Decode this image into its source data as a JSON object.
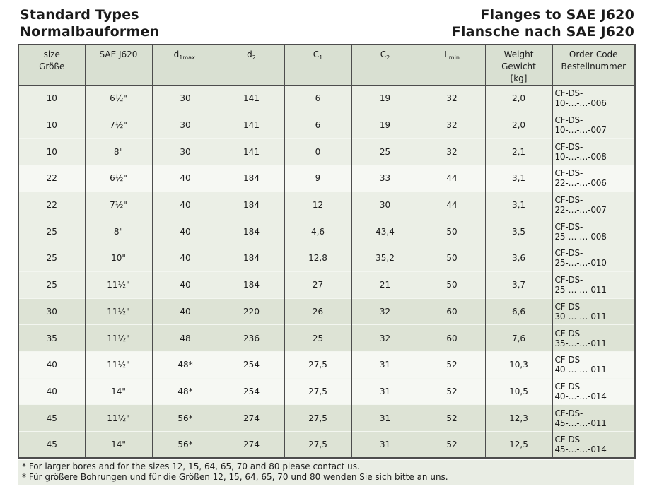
{
  "header": {
    "title_left": [
      "Standard Types",
      "Normalbauformen"
    ],
    "title_right": [
      "Flanges to SAE J620",
      "Flansche nach SAE J620"
    ]
  },
  "table": {
    "columns": [
      {
        "key": "size",
        "lines": [
          {
            "text": "size"
          },
          {
            "text": "Größe"
          }
        ]
      },
      {
        "key": "sae",
        "lines": [
          {
            "text": "SAE J620"
          }
        ]
      },
      {
        "key": "d1max",
        "lines": [
          {
            "text": "d",
            "sub": "1max."
          }
        ]
      },
      {
        "key": "d2",
        "lines": [
          {
            "text": "d",
            "sub": "2"
          }
        ]
      },
      {
        "key": "c1",
        "lines": [
          {
            "text": "C",
            "sub": "1"
          }
        ]
      },
      {
        "key": "c2",
        "lines": [
          {
            "text": "C",
            "sub": "2"
          }
        ]
      },
      {
        "key": "lmin",
        "lines": [
          {
            "text": "L",
            "sub": "min"
          }
        ]
      },
      {
        "key": "weight",
        "lines": [
          {
            "text": "Weight"
          },
          {
            "text": "Gewicht"
          },
          {
            "text": "[kg]"
          }
        ]
      },
      {
        "key": "order",
        "lines": [
          {
            "text": "Order Code"
          },
          {
            "text": "Bestellnummer"
          }
        ]
      }
    ],
    "rows": [
      {
        "shade": "a",
        "cells": [
          "10",
          "6½\"",
          "30",
          "141",
          "6",
          "19",
          "32",
          "2,0",
          "CF-DS-10-…-…-006"
        ]
      },
      {
        "shade": "a",
        "cells": [
          "10",
          "7½\"",
          "30",
          "141",
          "6",
          "19",
          "32",
          "2,0",
          "CF-DS-10-…-…-007"
        ]
      },
      {
        "shade": "a",
        "cells": [
          "10",
          "8\"",
          "30",
          "141",
          "0",
          "25",
          "32",
          "2,1",
          "CF-DS-10-…-…-008"
        ]
      },
      {
        "shade": "b",
        "cells": [
          "22",
          "6½\"",
          "40",
          "184",
          "9",
          "33",
          "44",
          "3,1",
          "CF-DS-22-…-…-006"
        ]
      },
      {
        "shade": "a",
        "cells": [
          "22",
          "7½\"",
          "40",
          "184",
          "12",
          "30",
          "44",
          "3,1",
          "CF-DS-22-…-…-007"
        ]
      },
      {
        "shade": "a",
        "cells": [
          "25",
          "8\"",
          "40",
          "184",
          "4,6",
          "43,4",
          "50",
          "3,5",
          "CF-DS-25-…-…-008"
        ]
      },
      {
        "shade": "a",
        "cells": [
          "25",
          "10\"",
          "40",
          "184",
          "12,8",
          "35,2",
          "50",
          "3,6",
          "CF-DS-25-…-…-010"
        ]
      },
      {
        "shade": "a",
        "cells": [
          "25",
          "11½\"",
          "40",
          "184",
          "27",
          "21",
          "50",
          "3,7",
          "CF-DS-25-…-…-011"
        ]
      },
      {
        "shade": "c",
        "cells": [
          "30",
          "11½\"",
          "40",
          "220",
          "26",
          "32",
          "60",
          "6,6",
          "CF-DS-30-…-…-011"
        ]
      },
      {
        "shade": "c",
        "cells": [
          "35",
          "11½\"",
          "48",
          "236",
          "25",
          "32",
          "60",
          "7,6",
          "CF-DS-35-…-…-011"
        ]
      },
      {
        "shade": "b",
        "cells": [
          "40",
          "11½\"",
          "48*",
          "254",
          "27,5",
          "31",
          "52",
          "10,3",
          "CF-DS-40-…-…-011"
        ]
      },
      {
        "shade": "b",
        "cells": [
          "40",
          "14\"",
          "48*",
          "254",
          "27,5",
          "31",
          "52",
          "10,5",
          "CF-DS-40-…-…-014"
        ]
      },
      {
        "shade": "c",
        "cells": [
          "45",
          "11½\"",
          "56*",
          "274",
          "27,5",
          "31",
          "52",
          "12,3",
          "CF-DS-45-…-…-011"
        ]
      },
      {
        "shade": "c",
        "cells": [
          "45",
          "14\"",
          "56*",
          "274",
          "27,5",
          "31",
          "52",
          "12,5",
          "CF-DS-45-…-…-014"
        ]
      }
    ]
  },
  "footnotes": [
    "* For larger bores and for the sizes 12, 15, 64, 65, 70 and 80 please contact us.",
    "* Für größere Bohrungen und für die Größen 12, 15, 64, 65, 70 und 80 wenden Sie sich bitte an uns."
  ],
  "colors": {
    "header_bg": "#d9e0d2",
    "row_a": "#ebefe6",
    "row_b": "#f6f8f3",
    "row_c": "#dde3d5",
    "footer_bg": "#e9ede4",
    "border": "#4d4d4d",
    "text": "#1c1c1c"
  }
}
